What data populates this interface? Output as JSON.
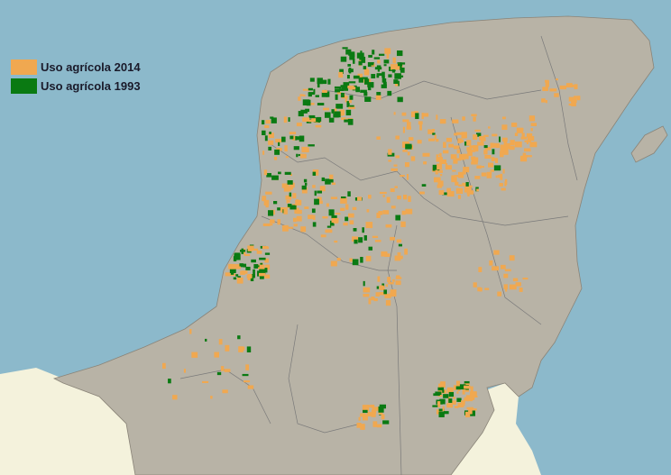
{
  "legend": {
    "items": [
      {
        "label": "Uso agrícola 2014",
        "color": "#f0a850"
      },
      {
        "label": "Uso agrícola 1993",
        "color": "#0a7a12"
      }
    ]
  },
  "colors": {
    "sea": "#8cb9cb",
    "land": "#b8b3a6",
    "neighbor_land": "#f4f2dc",
    "boundaries": "#777777"
  }
}
